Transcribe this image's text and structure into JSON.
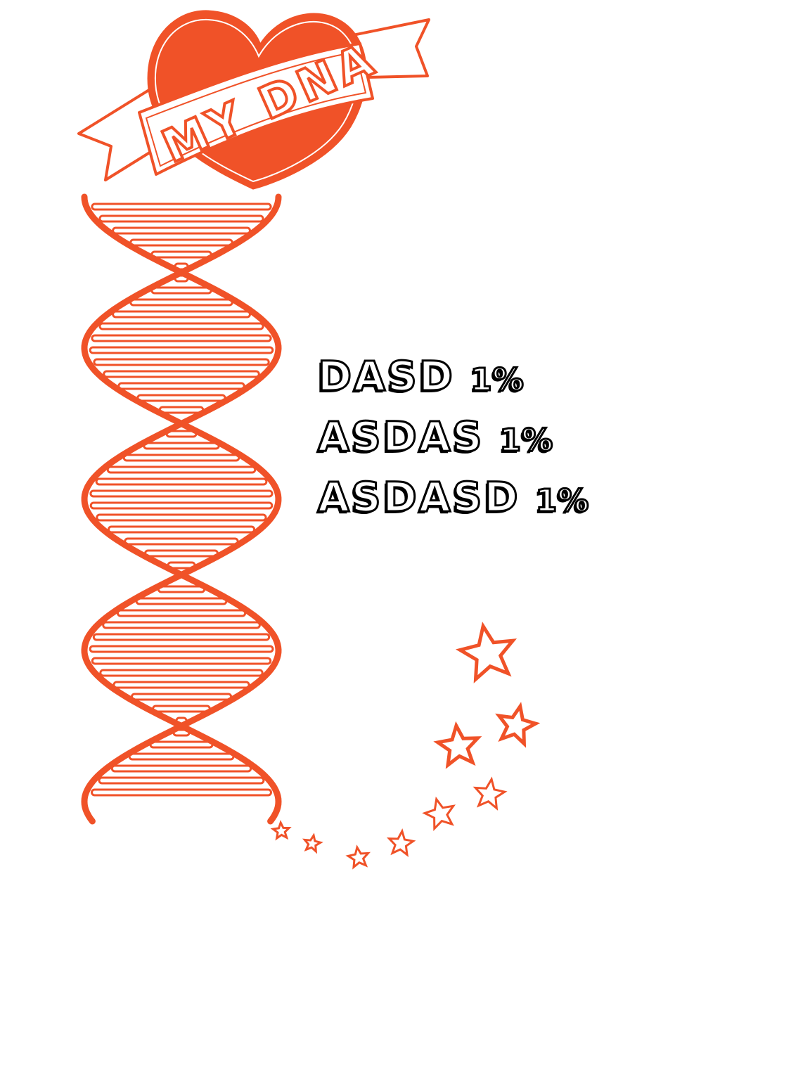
{
  "banner": {
    "text": "MY DNA"
  },
  "ancestry": [
    {
      "label": "DASD",
      "percent": "1%"
    },
    {
      "label": "ASDAS",
      "percent": "1%"
    },
    {
      "label": "ASDASD",
      "percent": "1%"
    }
  ],
  "colors": {
    "accent": "#f05228",
    "text_fill": "#ffffff",
    "text_outline": "#000000",
    "background": "#ffffff"
  },
  "icons": [
    "heart-icon",
    "ribbon-banner-icon",
    "dna-helix-icon",
    "star-icon"
  ]
}
